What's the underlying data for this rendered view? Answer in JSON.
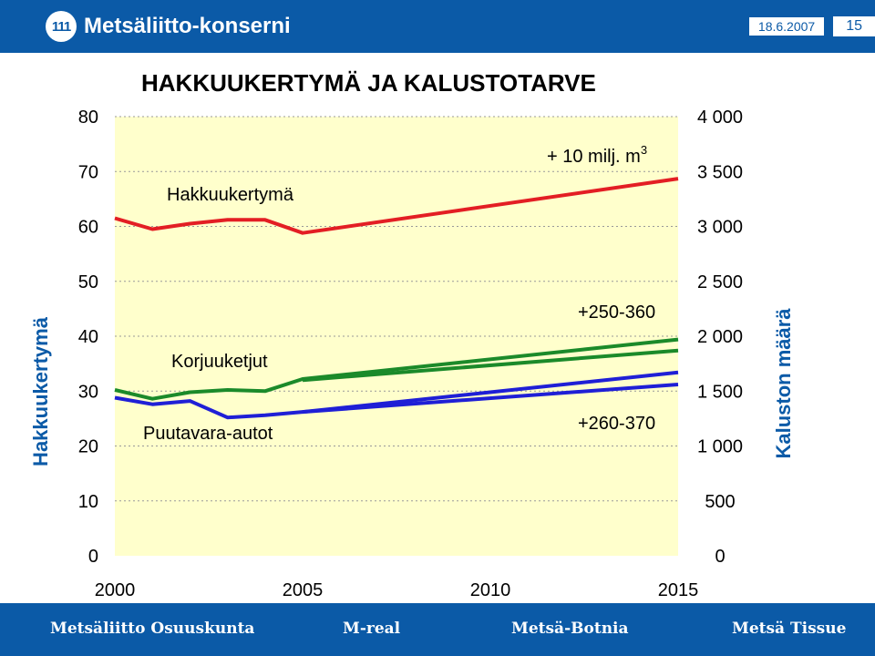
{
  "header": {
    "logo_mark": "111",
    "logo_text": "Metsäliitto-konserni",
    "date": "18.6.2007",
    "page_number": "15"
  },
  "footer": {
    "items": [
      "Metsäliitto Osuuskunta",
      "M-real",
      "Metsä-Botnia",
      "Metsä Tissue"
    ]
  },
  "colors": {
    "brand_blue": "#0b5aa7",
    "plot_bg": "#ffffcc",
    "red": "#e31e24",
    "green": "#1b8a2a",
    "blue": "#1f1fd6"
  },
  "chart_data": {
    "type": "line",
    "title": "HAKKUUKERTYMÄ JA KALUSTOTARVE",
    "ylabel": "Hakkuukertymä",
    "y2label": "Kaluston määrä",
    "xlim": [
      2000,
      2015
    ],
    "ylim": [
      0,
      80
    ],
    "y2lim": [
      0,
      4000
    ],
    "x_ticks": [
      "2000",
      "2005",
      "2010",
      "2015"
    ],
    "y_ticks": [
      "0",
      "10",
      "20",
      "30",
      "40",
      "50",
      "60",
      "70",
      "80"
    ],
    "y2_ticks": [
      "0",
      "500",
      "1 000",
      "1 500",
      "2 000",
      "2 500",
      "3 000",
      "3 500",
      "4 000"
    ],
    "grid": "horizontal dashed",
    "series": [
      {
        "name": "Hakkuukertymä",
        "axis": "left",
        "color": "#e31e24",
        "x": [
          2000,
          2001,
          2002,
          2003,
          2004,
          2005,
          2015
        ],
        "values": [
          61.5,
          59.5,
          60.5,
          61.2,
          61.2,
          58.8,
          68.7
        ]
      },
      {
        "name": "Korjuuketjut",
        "axis": "right",
        "color": "#1b8a2a",
        "x": [
          2000,
          2001,
          2002,
          2003,
          2004,
          2005,
          2015
        ],
        "values": [
          1510,
          1430,
          1490,
          1510,
          1500,
          1610,
          1970
        ]
      },
      {
        "name": "",
        "axis": "right",
        "color": "#1b8a2a",
        "x": [
          2005,
          2015
        ],
        "values": [
          1600,
          1870
        ]
      },
      {
        "name": "Puutavara-autot",
        "axis": "right",
        "color": "#1f1fd6",
        "x": [
          2000,
          2001,
          2002,
          2003,
          2004,
          2005,
          2015
        ],
        "values": [
          1440,
          1380,
          1410,
          1260,
          1280,
          1310,
          1670
        ]
      },
      {
        "name": "",
        "axis": "right",
        "color": "#1f1fd6",
        "x": [
          2005,
          2015
        ],
        "values": [
          1310,
          1560
        ]
      }
    ],
    "annotations": [
      "+ 10 milj. m",
      "3",
      "+250-360",
      "+260-370"
    ]
  }
}
